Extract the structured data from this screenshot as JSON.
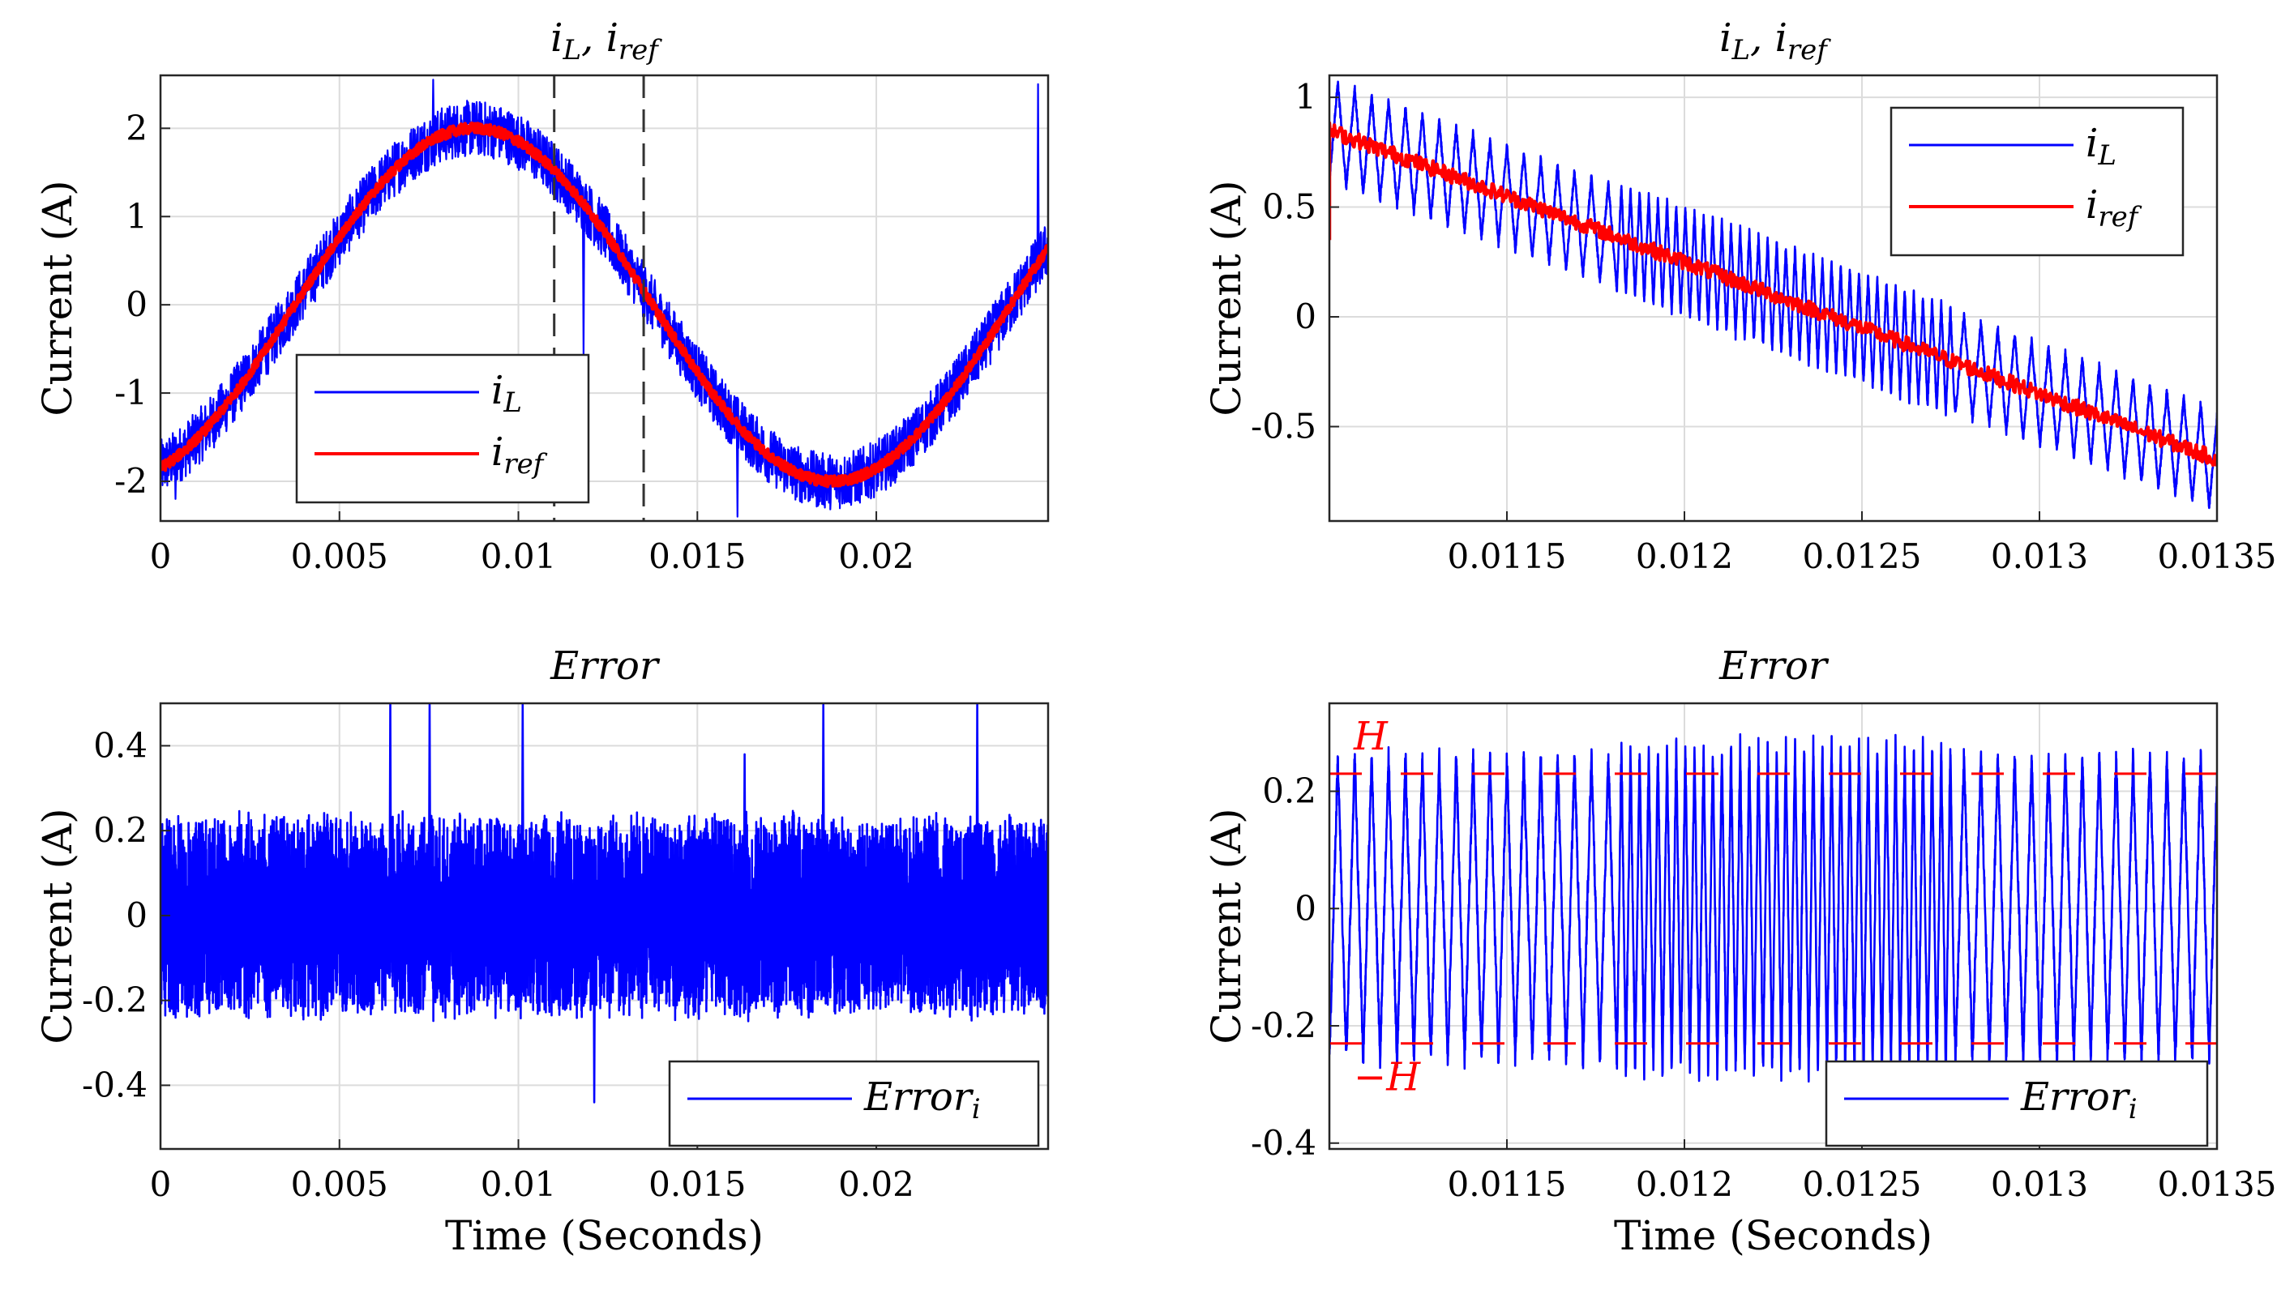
{
  "chart_data": [
    {
      "id": "p1",
      "type": "line",
      "title": "i_L, i_ref",
      "title_main": "i",
      "title_sub1": "L",
      "title_sep": ", i",
      "title_sub2": "ref",
      "ylabel": "Current (A)",
      "xlabel": "",
      "xlim": [
        0,
        0.0248
      ],
      "ylim": [
        -2.45,
        2.6
      ],
      "xticks": [
        0,
        0.005,
        0.01,
        0.015,
        0.02
      ],
      "xtick_labels": [
        "0",
        "0.005",
        "0.01",
        "0.015",
        "0.02"
      ],
      "yticks": [
        -2,
        -1,
        0,
        1,
        2
      ],
      "ytick_labels": [
        "-2",
        "-1",
        "0",
        "1",
        "2"
      ],
      "grid": true,
      "legend_position": "lower-left",
      "legend": [
        {
          "main": "i",
          "sub": "L",
          "color": "#0000ff"
        },
        {
          "main": "i",
          "sub": "ref",
          "color": "#ff0000"
        }
      ],
      "vlines": [
        0.011,
        0.0135
      ],
      "series": [
        {
          "name": "i_L",
          "color": "#0000ff",
          "kind": "sine",
          "freq_hz": 50,
          "amplitude": 2.0,
          "phase_rad": -1.18,
          "noise_band": 0.32
        },
        {
          "name": "i_ref",
          "color": "#ff0000",
          "kind": "sine",
          "freq_hz": 50,
          "amplitude": 2.0,
          "phase_rad": -1.18,
          "noise_band": 0.06
        }
      ]
    },
    {
      "id": "p2",
      "type": "line",
      "title": "i_L, i_ref",
      "title_main": "i",
      "title_sub1": "L",
      "title_sep": ", i",
      "title_sub2": "ref",
      "ylabel": "Current (A)",
      "xlabel": "",
      "xlim": [
        0.011,
        0.0135
      ],
      "ylim": [
        -0.93,
        1.1
      ],
      "xticks": [
        0.0115,
        0.012,
        0.0125,
        0.013,
        0.0135
      ],
      "xtick_labels": [
        "0.0115",
        "0.012",
        "0.0125",
        "0.013",
        "0.0135"
      ],
      "yticks": [
        -0.5,
        0,
        0.5,
        1
      ],
      "ytick_labels": [
        "-0.5",
        "0",
        "0.5",
        "1"
      ],
      "grid": true,
      "legend_position": "top-right",
      "legend": [
        {
          "main": "i",
          "sub": "L",
          "color": "#0000ff"
        },
        {
          "main": "i",
          "sub": "ref",
          "color": "#ff0000"
        }
      ],
      "series": [
        {
          "name": "i_L",
          "color": "#0000ff",
          "kind": "ripple",
          "start": 0.85,
          "end": -0.65,
          "ripple_amplitude": 0.23,
          "cycles_per_ms": 21,
          "fast_segment": [
            0.01181,
            0.01276
          ]
        },
        {
          "name": "i_ref",
          "color": "#ff0000",
          "kind": "ramp",
          "start": 0.85,
          "end": -0.65
        }
      ]
    },
    {
      "id": "p3",
      "type": "line",
      "title": "Error",
      "ylabel": "Current (A)",
      "xlabel": "Time (Seconds)",
      "xlim": [
        0,
        0.0248
      ],
      "ylim": [
        -0.55,
        0.5
      ],
      "xticks": [
        0,
        0.005,
        0.01,
        0.015,
        0.02
      ],
      "xtick_labels": [
        "0",
        "0.005",
        "0.01",
        "0.015",
        "0.02"
      ],
      "yticks": [
        -0.4,
        -0.2,
        0,
        0.2,
        0.4
      ],
      "ytick_labels": [
        "-0.4",
        "-0.2",
        "0",
        "0.2",
        "0.4"
      ],
      "grid": true,
      "legend_position": "lower-right",
      "legend": [
        {
          "main": "Error",
          "sub": "i",
          "color": "#0000ff"
        }
      ],
      "series": [
        {
          "name": "Error_i",
          "color": "#0000ff",
          "kind": "band",
          "band": 0.25,
          "spikes": [
            [
              0.0064,
              0.5
            ],
            [
              0.0075,
              0.5
            ],
            [
              0.0101,
              0.5
            ],
            [
              0.0121,
              -0.44
            ],
            [
              0.0163,
              0.38
            ],
            [
              0.0185,
              0.5
            ],
            [
              0.0228,
              0.5
            ]
          ]
        }
      ]
    },
    {
      "id": "p4",
      "type": "line",
      "title": "Error",
      "ylabel": "Current (A)",
      "xlabel": "Time (Seconds)",
      "xlim": [
        0.011,
        0.0135
      ],
      "ylim": [
        -0.41,
        0.35
      ],
      "xticks": [
        0.0115,
        0.012,
        0.0125,
        0.013,
        0.0135
      ],
      "xtick_labels": [
        "0.0115",
        "0.012",
        "0.0125",
        "0.013",
        "0.0135"
      ],
      "yticks": [
        -0.4,
        -0.2,
        0,
        0.2
      ],
      "ytick_labels": [
        "-0.4",
        "-0.2",
        "0",
        "0.2"
      ],
      "grid": true,
      "legend_position": "lower-right",
      "legend": [
        {
          "main": "Error",
          "sub": "i",
          "color": "#0000ff"
        }
      ],
      "hlines": [
        {
          "value": 0.23,
          "label": "H",
          "color": "#ff0000"
        },
        {
          "value": -0.23,
          "label": "−H",
          "color": "#ff0000"
        }
      ],
      "series": [
        {
          "name": "Error_i",
          "color": "#0000ff",
          "kind": "triangle",
          "amplitude": 0.26,
          "cycles_per_ms": 21,
          "fast_segment": [
            0.01181,
            0.01276
          ]
        }
      ]
    }
  ]
}
